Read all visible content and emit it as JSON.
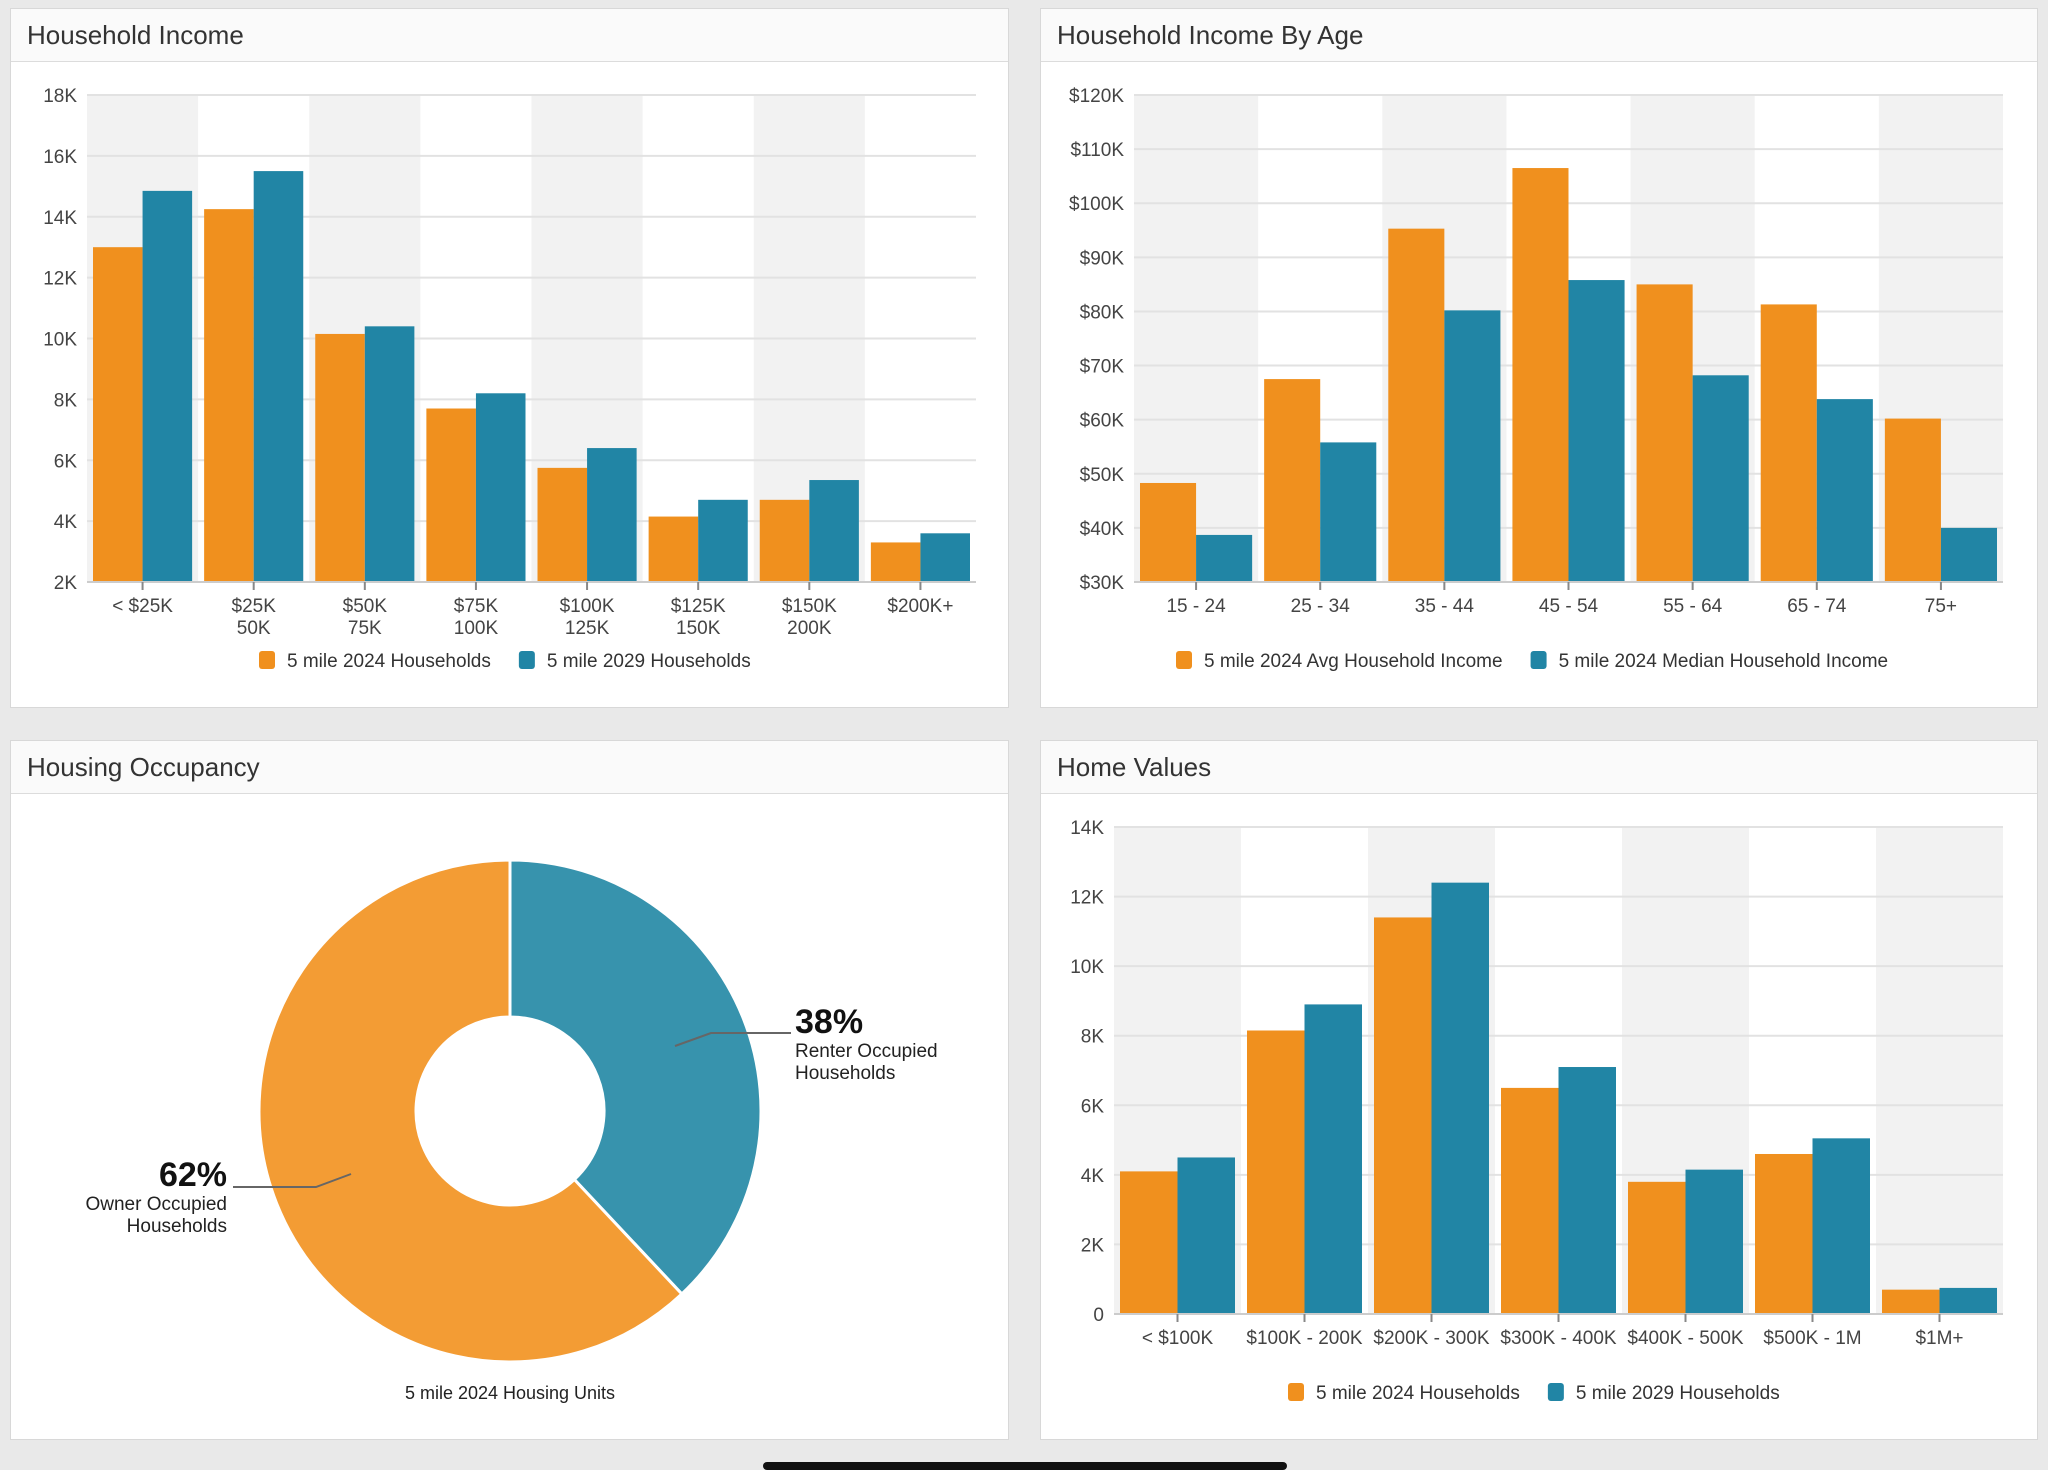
{
  "colors": {
    "series_a": "#f0901e",
    "series_b": "#2185a5",
    "donut_a": "#f39c34",
    "donut_b": "#3793ad"
  },
  "chart_data": [
    {
      "type": "bar",
      "title": "Household Income",
      "categories": [
        [
          "< $25K"
        ],
        [
          "$25K",
          "50K"
        ],
        [
          "$50K",
          "75K"
        ],
        [
          "$75K",
          "100K"
        ],
        [
          "$100K",
          "125K"
        ],
        [
          "$125K",
          "150K"
        ],
        [
          "$150K",
          "200K"
        ],
        [
          "$200K+"
        ]
      ],
      "ylim": [
        2000,
        18000
      ],
      "yticks": [
        2000,
        4000,
        6000,
        8000,
        10000,
        12000,
        14000,
        16000,
        18000
      ],
      "ytick_labels": [
        "2K",
        "4K",
        "6K",
        "8K",
        "10K",
        "12K",
        "14K",
        "16K",
        "18K"
      ],
      "grid": true,
      "legend": "bottom",
      "series": [
        {
          "name": "5 mile 2024 Households",
          "values": [
            13000,
            14250,
            10150,
            7700,
            5750,
            4150,
            4700,
            3300
          ]
        },
        {
          "name": "5 mile 2029 Households",
          "values": [
            14850,
            15500,
            10400,
            8200,
            6400,
            4700,
            5350,
            3600
          ]
        }
      ]
    },
    {
      "type": "bar",
      "title": "Household Income By Age",
      "categories": [
        [
          "15 - 24"
        ],
        [
          "25 - 34"
        ],
        [
          "35 - 44"
        ],
        [
          "45 - 54"
        ],
        [
          "55 - 64"
        ],
        [
          "65 - 74"
        ],
        [
          "75+"
        ]
      ],
      "ylim": [
        30000,
        120000
      ],
      "yticks": [
        30000,
        40000,
        50000,
        60000,
        70000,
        80000,
        90000,
        100000,
        110000,
        120000
      ],
      "ytick_labels": [
        "$30K",
        "$40K",
        "$50K",
        "$60K",
        "$70K",
        "$80K",
        "$90K",
        "$100K",
        "$110K",
        "$120K"
      ],
      "grid": true,
      "legend": "bottom",
      "series": [
        {
          "name": "5 mile 2024 Avg Household Income",
          "values": [
            48300,
            67500,
            95300,
            106500,
            85000,
            81300,
            60200
          ]
        },
        {
          "name": "5 mile 2024 Median Household Income",
          "values": [
            38700,
            55800,
            80200,
            85800,
            68200,
            63800,
            40000
          ]
        }
      ]
    },
    {
      "type": "pie",
      "title": "Housing Occupancy",
      "subtitle": "5 mile 2024 Housing Units",
      "slices": [
        {
          "label": [
            "Renter Occupied",
            "Households"
          ],
          "value": 38,
          "pct": "38%"
        },
        {
          "label": [
            "Owner Occupied",
            "Households"
          ],
          "value": 62,
          "pct": "62%"
        }
      ]
    },
    {
      "type": "bar",
      "title": "Home Values",
      "categories": [
        [
          "< $100K"
        ],
        [
          "$100K - 200K"
        ],
        [
          "$200K - 300K"
        ],
        [
          "$300K - 400K"
        ],
        [
          "$400K - 500K"
        ],
        [
          "$500K - 1M"
        ],
        [
          "$1M+"
        ]
      ],
      "ylim": [
        0,
        14000
      ],
      "yticks": [
        0,
        2000,
        4000,
        6000,
        8000,
        10000,
        12000,
        14000
      ],
      "ytick_labels": [
        "0",
        "2K",
        "4K",
        "6K",
        "8K",
        "10K",
        "12K",
        "14K"
      ],
      "grid": true,
      "legend": "bottom",
      "series": [
        {
          "name": "5 mile 2024 Households",
          "values": [
            4100,
            8150,
            11400,
            6500,
            3800,
            4600,
            700
          ]
        },
        {
          "name": "5 mile 2029 Households",
          "values": [
            4500,
            8900,
            12400,
            7100,
            4150,
            5050,
            750
          ]
        }
      ]
    }
  ]
}
